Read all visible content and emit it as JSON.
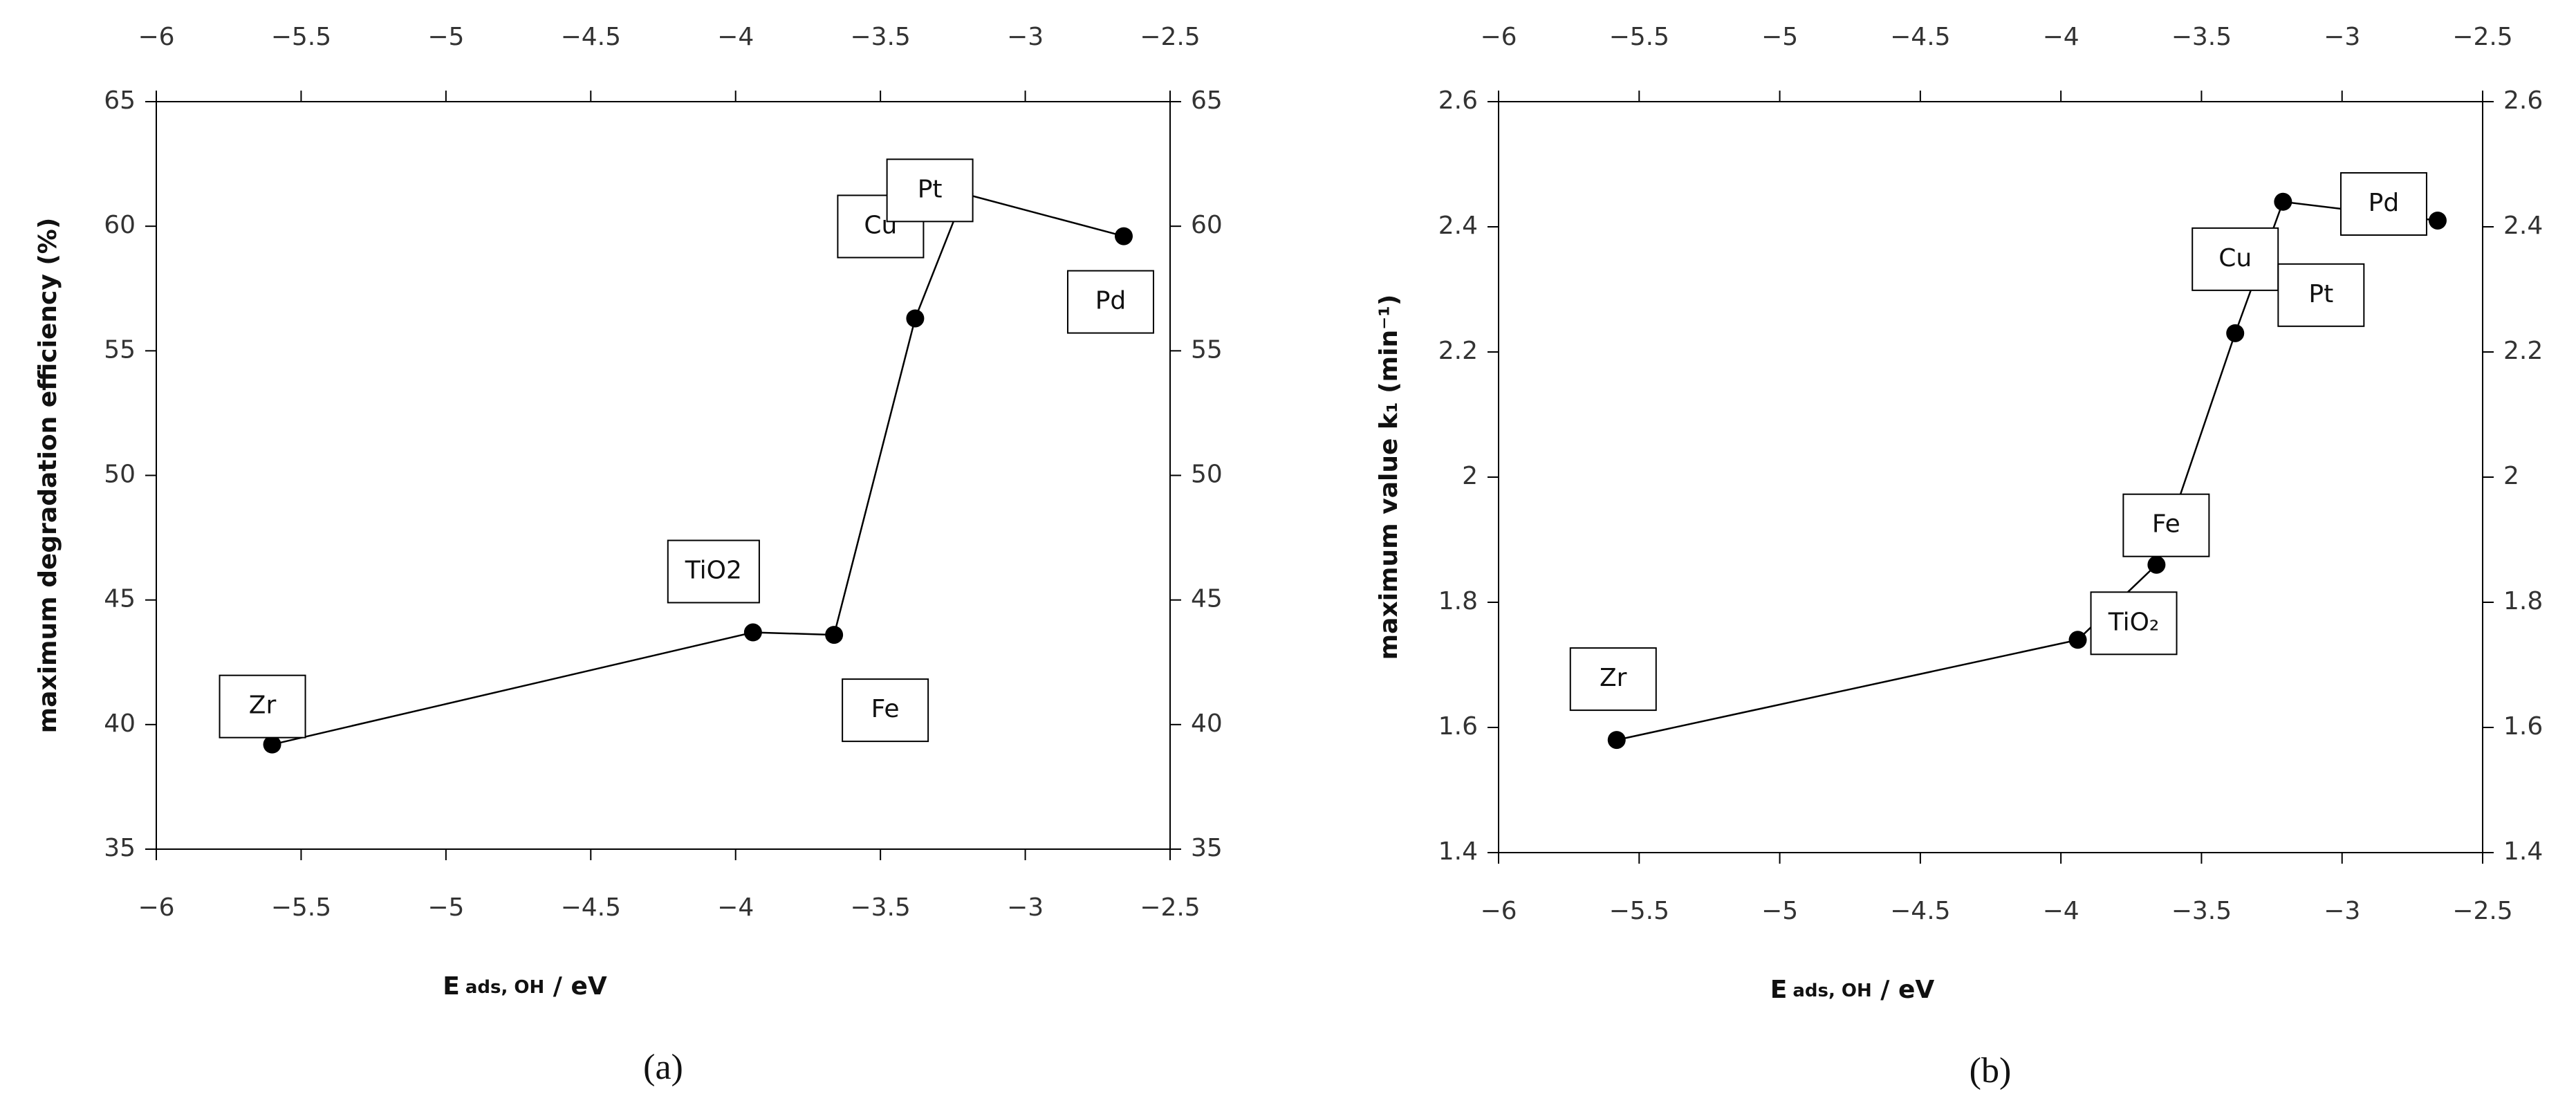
{
  "chart_data": [
    {
      "type": "line",
      "panel_label": "(a)",
      "x_label": [
        "E",
        "ads, OH",
        " / eV"
      ],
      "y_label": "maximum degradation efficiency (%)",
      "x": [
        -5.6,
        -3.94,
        -3.66,
        -3.38,
        -3.21,
        -2.66
      ],
      "point_labels": [
        "Zr",
        "TiO2",
        "Fe",
        "Cu",
        "Pt",
        "Pd"
      ],
      "series": [
        {
          "color": "#000000",
          "values": [
            39.2,
            43.7,
            43.6,
            56.3,
            61.3,
            59.6
          ]
        }
      ],
      "xlim": [
        -6,
        -2.5
      ],
      "xticks": [
        -6,
        -5.5,
        -5,
        -4.5,
        -4,
        -3.5,
        -3,
        -2.5
      ],
      "ylim": [
        35,
        65
      ],
      "yticks": [
        35,
        40,
        45,
        50,
        55,
        60,
        65
      ]
    },
    {
      "type": "line",
      "panel_label": "(b)",
      "x_label": [
        "E",
        "ads, OH",
        " / eV"
      ],
      "y_label": "maximum value k₁ (min⁻¹)",
      "x": [
        -5.58,
        -3.94,
        -3.66,
        -3.38,
        -3.21,
        -2.66
      ],
      "point_labels": [
        "Zr",
        "TiO₂",
        "Fe",
        "Cu",
        "Pt",
        "Pd"
      ],
      "series": [
        {
          "color": "#000000",
          "values": [
            1.58,
            1.74,
            1.86,
            2.23,
            2.44,
            2.41
          ]
        }
      ],
      "xlim": [
        -6,
        -2.5
      ],
      "xticks": [
        -6,
        -5.5,
        -5,
        -4.5,
        -4,
        -3.5,
        -3,
        -2.5
      ],
      "ylim": [
        1.4,
        2.6
      ],
      "yticks": [
        1.4,
        1.6,
        1.8,
        2,
        2.2,
        2.4,
        2.6
      ]
    }
  ]
}
